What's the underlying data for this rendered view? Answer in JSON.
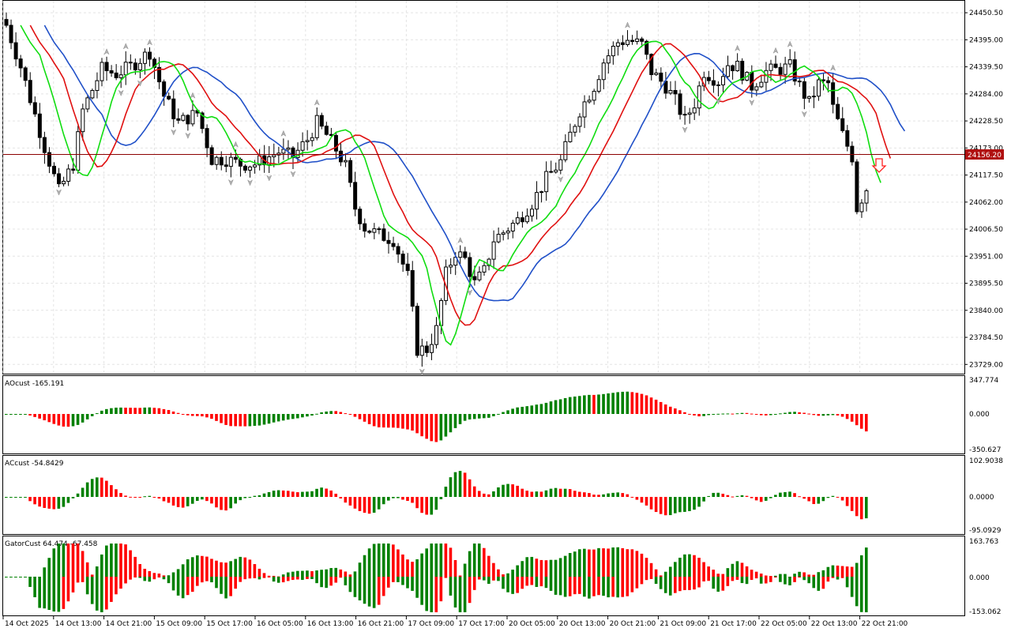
{
  "chart_data": {
    "type": "candlestick",
    "main_panel": {
      "current_price": "24156.20",
      "price_axis_labels": [
        "24450.50",
        "24395.00",
        "24339.50",
        "24284.00",
        "24228.50",
        "24173.00",
        "24117.50",
        "24062.00",
        "24006.50",
        "23951.00",
        "23895.50",
        "23840.00",
        "23784.50",
        "23729.00"
      ],
      "ylim": [
        23710,
        24475
      ],
      "series": [
        {
          "name": "",
          "color": "#2050c8",
          "role": "slow-ma"
        },
        {
          "name": "",
          "color": "#e01010",
          "role": "mid-ma"
        },
        {
          "name": "",
          "color": "#10dd10",
          "role": "fast-ma"
        }
      ],
      "signal": "down-arrow"
    },
    "ao_panel": {
      "title": "AOcust -165.191",
      "axis_labels": [
        "347.774",
        "0.000",
        "-350.627"
      ],
      "ylim": [
        -350.627,
        347.774
      ],
      "last_value": -165.191
    },
    "ac_panel": {
      "title": "ACcust -54.8429",
      "axis_labels": [
        "102.9038",
        "0.0000",
        "-95.0929"
      ],
      "ylim": [
        -95.0929,
        102.9038
      ],
      "last_value": -54.8429
    },
    "gator_panel": {
      "title": "GatorCust 64.474 -67.458",
      "axis_labels": [
        "163.763",
        "0.000",
        "-153.062"
      ],
      "ylim": [
        -153.062,
        163.763
      ],
      "upper_last": 64.474,
      "lower_last": -67.458
    },
    "time_labels": [
      "14 Oct 2025",
      "14 Oct 13:00",
      "14 Oct 21:00",
      "15 Oct 09:00",
      "15 Oct 17:00",
      "16 Oct 05:00",
      "16 Oct 13:00",
      "16 Oct 21:00",
      "17 Oct 09:00",
      "17 Oct 17:00",
      "20 Oct 05:00",
      "20 Oct 13:00",
      "20 Oct 21:00",
      "21 Oct 09:00",
      "21 Oct 17:00",
      "22 Oct 05:00",
      "22 Oct 13:00",
      "22 Oct 21:00"
    ],
    "colors": {
      "bull": "#008000",
      "bear": "#ff0000",
      "candle_up": "#ffffff",
      "candle_down": "#000000",
      "price_line": "#8b0000"
    }
  }
}
